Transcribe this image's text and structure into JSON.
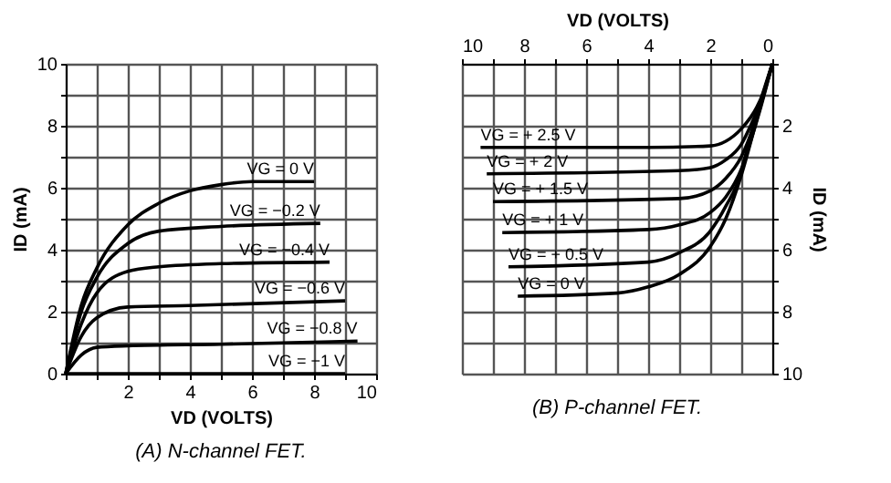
{
  "chart_data": [
    {
      "type": "line",
      "title": "(A) N-channel FET.",
      "xlabel": "VD (VOLTS)",
      "ylabel": "ID (mA)",
      "xlim": [
        0,
        10
      ],
      "ylim": [
        0,
        10
      ],
      "xticks": [
        {
          "value": 0,
          "label": null
        },
        {
          "value": 1,
          "label": null
        },
        2,
        {
          "value": 3,
          "label": null
        },
        4,
        {
          "value": 5,
          "label": null
        },
        6,
        {
          "value": 7,
          "label": null
        },
        8,
        {
          "value": 9,
          "label": null
        },
        10
      ],
      "yticks": [
        0,
        {
          "value": 1,
          "label": null
        },
        2,
        {
          "value": 3,
          "label": null
        },
        4,
        {
          "value": 5,
          "label": null
        },
        6,
        {
          "value": 7,
          "label": null
        },
        8,
        {
          "value": 9,
          "label": null
        },
        10
      ],
      "grid": true,
      "legend": false,
      "marker": "none",
      "line_style": "solid",
      "series": [
        {
          "name": "VG = 0 V",
          "color": "#000000",
          "x": [
            0,
            0.5,
            1,
            2,
            3,
            4,
            5,
            6,
            8
          ],
          "values": [
            0,
            2.2,
            3.4,
            4.8,
            5.5,
            5.9,
            6.1,
            6.2,
            6.2
          ]
        },
        {
          "name": "VG = −0.2 V",
          "color": "#000000",
          "x": [
            0,
            0.5,
            1,
            2,
            3,
            5,
            8.2
          ],
          "values": [
            0,
            2.0,
            3.1,
            4.2,
            4.6,
            4.75,
            4.85
          ]
        },
        {
          "name": "VG = −0.4 V",
          "color": "#000000",
          "x": [
            0,
            0.5,
            1,
            2,
            3,
            5,
            8.5
          ],
          "values": [
            0,
            1.6,
            2.6,
            3.3,
            3.45,
            3.55,
            3.6
          ]
        },
        {
          "name": "VG = −0.6 V",
          "color": "#000000",
          "x": [
            0,
            0.5,
            1,
            2,
            4,
            9
          ],
          "values": [
            0,
            1.2,
            1.8,
            2.15,
            2.2,
            2.35
          ]
        },
        {
          "name": "VG = −0.8 V",
          "color": "#000000",
          "x": [
            0,
            0.5,
            1,
            2,
            5,
            9.4
          ],
          "values": [
            0,
            0.6,
            0.85,
            0.9,
            0.95,
            1.05
          ]
        },
        {
          "name": "VG = −1 V",
          "color": "#000000",
          "x": [
            0,
            9
          ],
          "values": [
            0,
            0
          ]
        }
      ]
    },
    {
      "type": "line",
      "title": "(B) P-channel FET.",
      "xlabel": "VD (VOLTS)",
      "ylabel": "ID (mA)",
      "xlim": [
        10,
        0
      ],
      "ylim": [
        10,
        0
      ],
      "xticks": [
        10,
        {
          "value": 9,
          "label": null
        },
        8,
        {
          "value": 7,
          "label": null
        },
        6,
        {
          "value": 5,
          "label": null
        },
        4,
        {
          "value": 3,
          "label": null
        },
        2,
        {
          "value": 1,
          "label": null
        },
        0
      ],
      "yticks": [
        {
          "value": 0,
          "label": null
        },
        {
          "value": 1,
          "label": null
        },
        2,
        {
          "value": 3,
          "label": null
        },
        4,
        {
          "value": 5,
          "label": null
        },
        6,
        {
          "value": 7,
          "label": null
        },
        8,
        {
          "value": 9,
          "label": null
        },
        10
      ],
      "grid": true,
      "legend": false,
      "marker": "none",
      "line_style": "solid",
      "series": [
        {
          "name": "VG = + 2.5 V",
          "color": "#000000",
          "x": [
            0,
            0.2,
            0.5,
            1,
            1.5,
            2,
            4,
            9.4
          ],
          "values": [
            0,
            0.7,
            1.4,
            2.1,
            2.5,
            2.65,
            2.7,
            2.7
          ]
        },
        {
          "name": "VG = + 2 V",
          "color": "#000000",
          "x": [
            0,
            0.3,
            0.7,
            1,
            1.5,
            2,
            3,
            9.2
          ],
          "values": [
            0,
            1.0,
            2.0,
            2.6,
            3.1,
            3.35,
            3.45,
            3.55
          ]
        },
        {
          "name": "VG = + 1.5 V",
          "color": "#000000",
          "x": [
            0,
            0.3,
            0.6,
            1,
            1.5,
            2,
            3,
            9.0
          ],
          "values": [
            0,
            1.0,
            2.0,
            3.0,
            3.7,
            4.1,
            4.35,
            4.45
          ]
        },
        {
          "name": "VG = + 1 V",
          "color": "#000000",
          "x": [
            0,
            0.4,
            0.7,
            1,
            1.5,
            2,
            3,
            4,
            8.7
          ],
          "values": [
            0,
            1.5,
            2.5,
            3.4,
            4.3,
            4.8,
            5.2,
            5.35,
            5.45
          ]
        },
        {
          "name": "VG = + 0.5 V",
          "color": "#000000",
          "x": [
            0,
            0.5,
            0.8,
            1,
            1.5,
            2,
            3,
            4,
            8.5
          ],
          "values": [
            0,
            1.6,
            2.7,
            3.5,
            4.6,
            5.4,
            6.1,
            6.4,
            6.55
          ]
        },
        {
          "name": "VG = 0 V",
          "color": "#000000",
          "x": [
            0,
            0.5,
            1,
            1.5,
            2,
            3,
            4,
            5,
            8.2
          ],
          "values": [
            0,
            1.8,
            3.6,
            5.0,
            5.9,
            6.8,
            7.2,
            7.4,
            7.5
          ]
        }
      ]
    }
  ]
}
